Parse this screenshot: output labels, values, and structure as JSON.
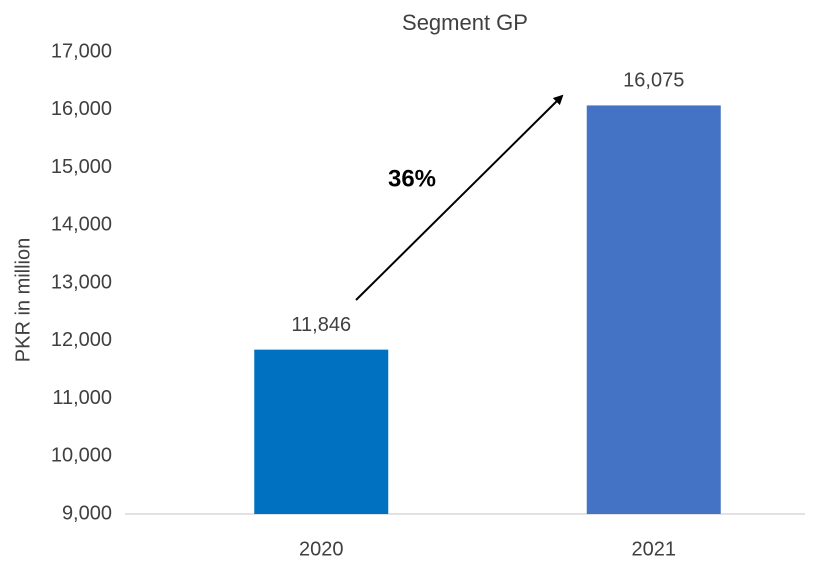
{
  "chart_data": {
    "type": "bar",
    "title": "Segment GP",
    "y_label": "PKR in million",
    "categories": [
      "2020",
      "2021"
    ],
    "values": [
      11846,
      16075
    ],
    "value_labels": [
      "11,846",
      "16,075"
    ],
    "colors": [
      "#0070c0",
      "#4472c4"
    ],
    "annotation": "36%",
    "ylim": [
      9000,
      17000
    ],
    "yticks": [
      {
        "value": 9000,
        "label": "9,000"
      },
      {
        "value": 10000,
        "label": "10,000"
      },
      {
        "value": 11000,
        "label": "11,000"
      },
      {
        "value": 12000,
        "label": "12,000"
      },
      {
        "value": 13000,
        "label": "13,000"
      },
      {
        "value": 14000,
        "label": "14,000"
      },
      {
        "value": 15000,
        "label": "15,000"
      },
      {
        "value": 16000,
        "label": "16,000"
      },
      {
        "value": 17000,
        "label": "17,000"
      }
    ],
    "grid": false
  }
}
